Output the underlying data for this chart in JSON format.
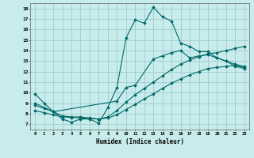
{
  "xlabel": "Humidex (Indice chaleur)",
  "xlim": [
    -0.5,
    23.5
  ],
  "ylim": [
    6.5,
    18.5
  ],
  "yticks": [
    7,
    8,
    9,
    10,
    11,
    12,
    13,
    14,
    15,
    16,
    17,
    18
  ],
  "xticks": [
    0,
    1,
    2,
    3,
    4,
    5,
    6,
    7,
    8,
    9,
    10,
    11,
    12,
    13,
    14,
    15,
    16,
    17,
    18,
    19,
    20,
    21,
    22,
    23
  ],
  "line_color": "#006868",
  "bg_color": "#c8ecec",
  "grid_color": "#a0cccc",
  "line1_x": [
    0,
    1,
    2,
    3,
    4,
    5,
    6,
    7,
    8,
    9,
    10,
    11,
    12,
    13,
    14,
    15,
    16,
    17,
    18,
    19,
    20,
    21,
    22,
    23
  ],
  "line1_y": [
    9.9,
    9.0,
    8.2,
    7.5,
    7.2,
    7.5,
    7.5,
    7.1,
    8.6,
    10.5,
    15.2,
    16.9,
    16.6,
    18.1,
    17.2,
    16.8,
    14.7,
    14.4,
    13.9,
    13.9,
    13.3,
    13.0,
    12.5,
    12.3
  ],
  "line2_x": [
    0,
    2,
    9,
    10,
    11,
    13,
    14,
    15,
    16,
    17,
    18,
    19,
    20,
    21,
    22,
    23
  ],
  "line2_y": [
    9.0,
    8.2,
    9.2,
    10.5,
    10.7,
    13.2,
    13.5,
    13.8,
    14.0,
    13.3,
    13.5,
    13.6,
    13.3,
    13.0,
    12.7,
    12.5
  ],
  "line3_x": [
    0,
    1,
    2,
    3,
    4,
    5,
    6,
    7,
    8,
    9,
    10,
    11,
    12,
    13,
    14,
    15,
    16,
    17,
    18,
    19,
    20,
    21,
    22,
    23
  ],
  "line3_y": [
    8.8,
    8.5,
    8.2,
    7.8,
    7.7,
    7.7,
    7.6,
    7.5,
    7.7,
    8.3,
    9.1,
    9.8,
    10.4,
    11.0,
    11.6,
    12.2,
    12.7,
    13.1,
    13.4,
    13.7,
    13.8,
    14.0,
    14.2,
    14.4
  ],
  "line4_x": [
    0,
    1,
    2,
    3,
    4,
    5,
    6,
    7,
    8,
    9,
    10,
    11,
    12,
    13,
    14,
    15,
    16,
    17,
    18,
    19,
    20,
    21,
    22,
    23
  ],
  "line4_y": [
    8.3,
    8.1,
    7.9,
    7.7,
    7.65,
    7.6,
    7.55,
    7.5,
    7.6,
    7.9,
    8.4,
    8.9,
    9.4,
    9.9,
    10.4,
    10.9,
    11.3,
    11.7,
    12.0,
    12.3,
    12.4,
    12.5,
    12.6,
    12.4
  ]
}
